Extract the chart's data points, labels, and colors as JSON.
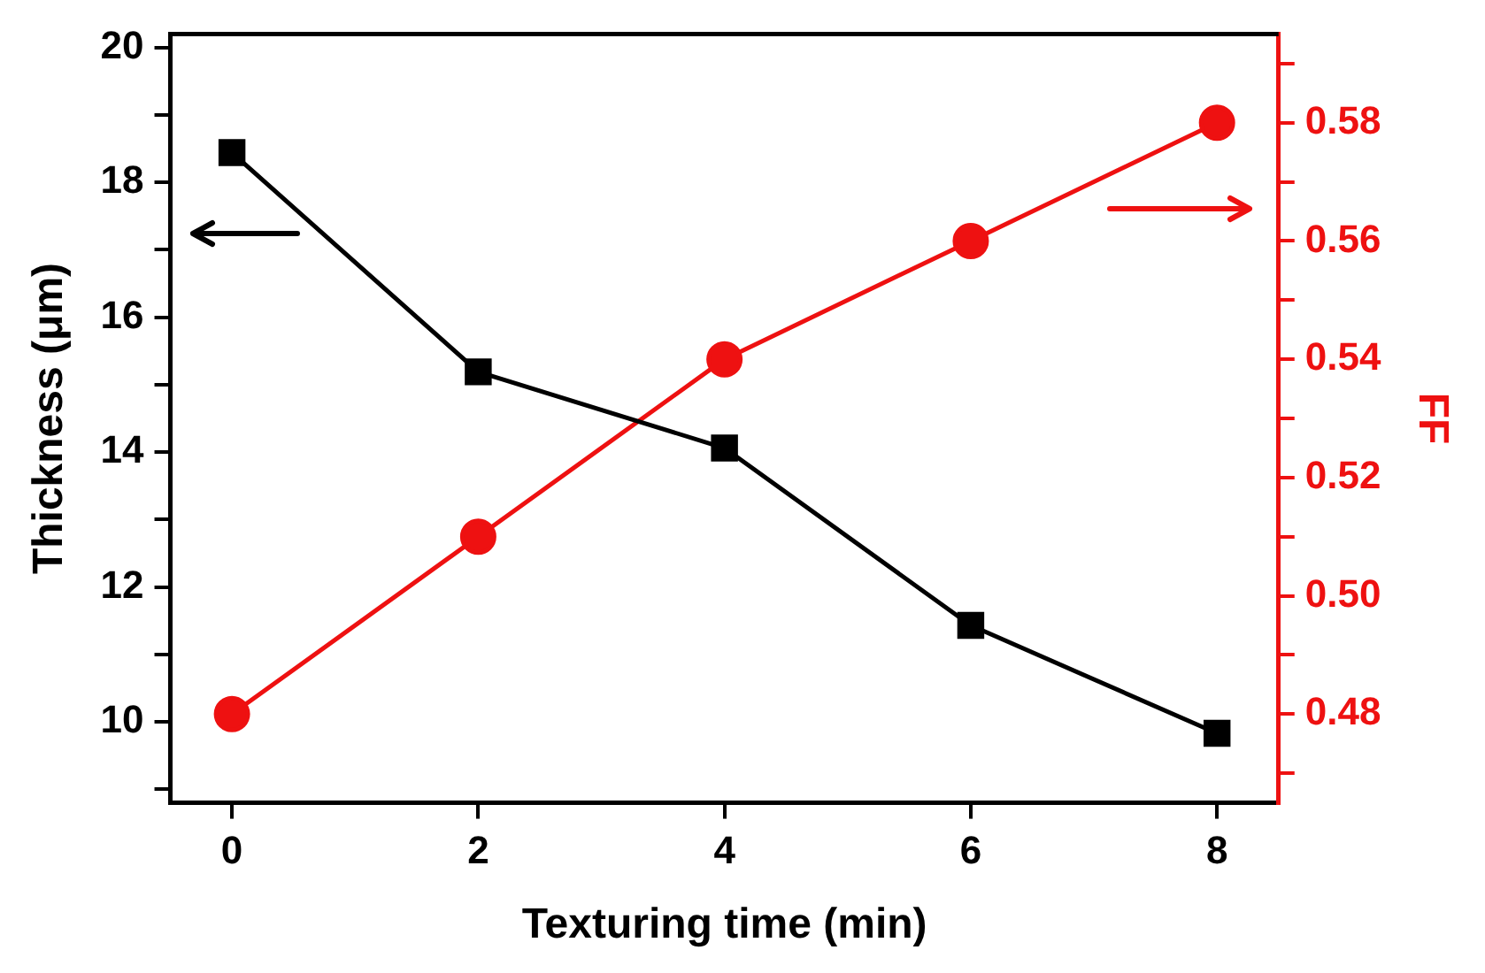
{
  "chart_data": {
    "type": "line",
    "xlabel": "Texturing time (min)",
    "ylabel": "Thickness (μm)",
    "y2label": "FF",
    "x": [
      0,
      2,
      4,
      6,
      8
    ],
    "xlim": [
      -0.5,
      8.5
    ],
    "xticks": [
      0,
      2,
      4,
      6,
      8
    ],
    "ylim": [
      8.8,
      20.2
    ],
    "yticks": [
      {
        "value": 9,
        "label": null
      },
      10,
      {
        "value": 11,
        "label": null
      },
      12,
      {
        "value": 13,
        "label": null
      },
      14,
      {
        "value": 15,
        "label": null
      },
      16,
      {
        "value": 17,
        "label": null
      },
      18,
      {
        "value": 19,
        "label": null
      },
      20
    ],
    "y2lim": [
      0.465,
      0.595
    ],
    "y2ticks": [
      {
        "value": 0.47,
        "label": null
      },
      {
        "value": 0.48,
        "label": "0.48"
      },
      {
        "value": 0.49,
        "label": null
      },
      {
        "value": 0.5,
        "label": "0.50"
      },
      {
        "value": 0.51,
        "label": null
      },
      {
        "value": 0.52,
        "label": "0.52"
      },
      {
        "value": 0.53,
        "label": null
      },
      {
        "value": 0.54,
        "label": "0.54"
      },
      {
        "value": 0.55,
        "label": null
      },
      {
        "value": 0.56,
        "label": "0.56"
      },
      {
        "value": 0.57,
        "label": null
      },
      {
        "value": 0.58,
        "label": "0.58"
      },
      {
        "value": 0.59,
        "label": null
      }
    ],
    "grid": false,
    "legend": false,
    "series": [
      {
        "color": "#000000",
        "marker": "square",
        "values": [
          18.44,
          15.19,
          14.06,
          11.43,
          9.83
        ]
      },
      {
        "color": "#ee1111",
        "marker": "circle",
        "axis": "y2",
        "values": [
          0.48,
          0.51,
          0.54,
          0.56,
          0.58
        ]
      }
    ]
  }
}
